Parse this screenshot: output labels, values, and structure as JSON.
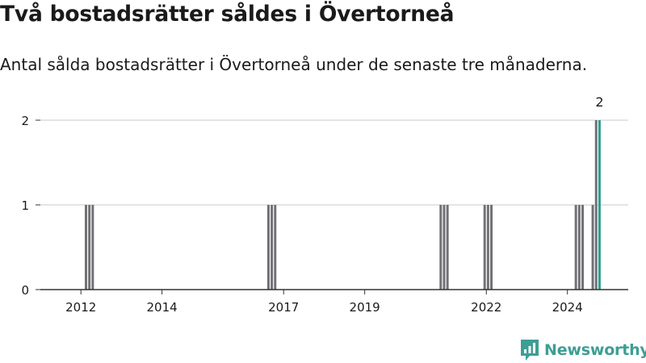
{
  "page": {
    "title": "Två bostadsrätter såldes i Övertorneå",
    "subtitle": "Antal sålda bostadsrätter i Övertorneå under de senaste tre månaderna.",
    "brand": "Newsworthy"
  },
  "colors": {
    "bar": "#717075",
    "highlight": "#2e9e92",
    "grid": "#dcdcdc",
    "axis": "#333333",
    "text": "#1a1a1a",
    "brand": "#3d9e95"
  },
  "chart_data": {
    "type": "bar",
    "title": "",
    "xlabel": "",
    "ylabel": "",
    "ylim": [
      0,
      2
    ],
    "yticks": [
      "0",
      "1",
      "2"
    ],
    "xticks": [
      "2012",
      "2014",
      "2017",
      "2019",
      "2022",
      "2024"
    ],
    "grid": true,
    "series": [
      {
        "points": [
          {
            "x": "2012-02",
            "y": 1
          },
          {
            "x": "2012-03",
            "y": 1
          },
          {
            "x": "2012-04",
            "y": 1
          },
          {
            "x": "2016-08",
            "y": 1
          },
          {
            "x": "2016-09",
            "y": 1
          },
          {
            "x": "2016-10",
            "y": 1
          },
          {
            "x": "2020-11",
            "y": 1
          },
          {
            "x": "2020-12",
            "y": 1
          },
          {
            "x": "2021-01",
            "y": 1
          },
          {
            "x": "2021-12",
            "y": 1
          },
          {
            "x": "2022-01",
            "y": 1
          },
          {
            "x": "2022-02",
            "y": 1
          },
          {
            "x": "2024-03",
            "y": 1
          },
          {
            "x": "2024-04",
            "y": 1
          },
          {
            "x": "2024-05",
            "y": 1
          },
          {
            "x": "2024-08",
            "y": 1
          },
          {
            "x": "2024-09",
            "y": 2
          },
          {
            "x": "2024-10",
            "y": 2
          }
        ]
      }
    ],
    "annotations": [
      {
        "x": "2024-10",
        "y": 2,
        "text": "2"
      }
    ]
  }
}
